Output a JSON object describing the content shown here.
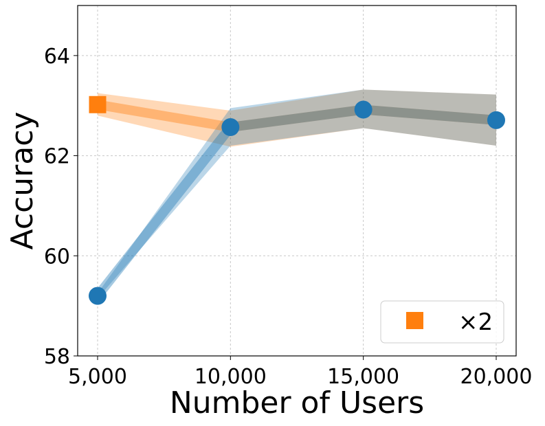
{
  "chart_data": {
    "type": "line",
    "xlabel": "Number of Users",
    "ylabel": "Accuracy",
    "x": [
      5000,
      10000,
      15000,
      20000
    ],
    "x_tick_labels": [
      "5,000",
      "10,000",
      "15,000",
      "20,000"
    ],
    "y_ticks": [
      58,
      60,
      62,
      64
    ],
    "y_tick_labels": [
      "58",
      "60",
      "62",
      "64"
    ],
    "xlim": [
      4250,
      20750
    ],
    "ylim": [
      58,
      65
    ],
    "grid": true,
    "legend_position": "bottom-right",
    "series": [
      {
        "color": "#ff7f0e",
        "marker": "square",
        "points": [
          {
            "x": 5000,
            "y": 63.02,
            "lower": 62.8,
            "upper": 63.25
          },
          {
            "x": 10000,
            "y": 62.57,
            "lower": 62.18,
            "upper": 62.9
          },
          {
            "x": 15000,
            "y": 62.92,
            "lower": 62.55,
            "upper": 63.32
          },
          {
            "x": 20000,
            "y": 62.71,
            "lower": 62.2,
            "upper": 63.22
          }
        ]
      },
      {
        "color": "#1f77b4",
        "marker": "circle",
        "points": [
          {
            "x": 5000,
            "y": 59.2,
            "lower": 59.15,
            "upper": 59.25
          },
          {
            "x": 10000,
            "y": 62.57,
            "lower": 62.2,
            "upper": 62.95
          },
          {
            "x": 15000,
            "y": 62.92,
            "lower": 62.55,
            "upper": 63.32
          },
          {
            "x": 20000,
            "y": 62.71,
            "lower": 62.2,
            "upper": 63.22
          }
        ]
      }
    ],
    "legend": [
      {
        "label": "×2",
        "marker": "square",
        "color": "#ff7f0e"
      }
    ]
  }
}
